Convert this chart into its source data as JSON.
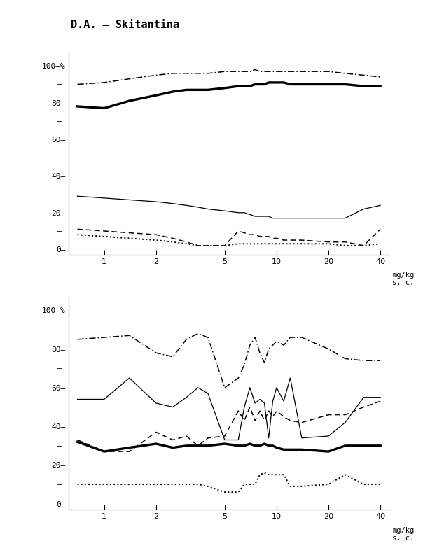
{
  "title": "D.A. – Skitantina",
  "x_label_top": "mg/kg\ns. c.",
  "x_label_bot": "mg/kg\ns. c.",
  "x_vals": [
    0.7,
    1.0,
    1.4,
    2.0,
    2.5,
    3.0,
    3.5,
    4.0,
    5.0,
    6.0,
    6.5,
    7.0,
    7.5,
    8.0,
    8.5,
    9.0,
    9.5,
    10.0,
    11.0,
    12.0,
    14.0,
    20.0,
    25.0,
    32.0,
    40.0
  ],
  "top": {
    "dash_dot": [
      90,
      91,
      93,
      95,
      96,
      96,
      96,
      96,
      97,
      97,
      97,
      97,
      98,
      97,
      97,
      97,
      97,
      97,
      97,
      97,
      97,
      97,
      96,
      95,
      94
    ],
    "solid_bold": [
      78,
      77,
      81,
      84,
      86,
      87,
      87,
      87,
      88,
      89,
      89,
      89,
      90,
      90,
      90,
      91,
      91,
      91,
      91,
      90,
      90,
      90,
      90,
      89,
      89
    ],
    "solid_thin": [
      29,
      28,
      27,
      26,
      25,
      24,
      23,
      22,
      21,
      20,
      20,
      19,
      18,
      18,
      18,
      18,
      17,
      17,
      17,
      17,
      17,
      17,
      17,
      22,
      24
    ],
    "dashed": [
      11,
      10,
      9,
      8,
      6,
      4,
      2,
      2,
      2,
      10,
      9,
      8,
      8,
      7,
      7,
      7,
      6,
      6,
      5,
      5,
      5,
      4,
      4,
      2,
      11
    ],
    "dotted": [
      8,
      7,
      6,
      5,
      4,
      3,
      2,
      2,
      2,
      3,
      3,
      3,
      3,
      3,
      3,
      3,
      3,
      3,
      3,
      3,
      3,
      3,
      2,
      2,
      3
    ]
  },
  "bottom": {
    "dash_dot": [
      85,
      86,
      87,
      78,
      76,
      85,
      88,
      86,
      60,
      65,
      72,
      82,
      86,
      78,
      73,
      80,
      82,
      84,
      82,
      86,
      86,
      80,
      75,
      74,
      74
    ],
    "solid_thin": [
      54,
      54,
      65,
      52,
      50,
      55,
      60,
      57,
      33,
      33,
      50,
      60,
      52,
      54,
      52,
      34,
      53,
      60,
      53,
      65,
      34,
      35,
      42,
      55,
      55
    ],
    "dashed": [
      33,
      27,
      27,
      37,
      33,
      35,
      30,
      34,
      35,
      48,
      43,
      50,
      43,
      48,
      43,
      48,
      45,
      48,
      45,
      43,
      42,
      46,
      46,
      50,
      53
    ],
    "solid_bold": [
      32,
      27,
      29,
      31,
      29,
      30,
      30,
      30,
      31,
      30,
      30,
      31,
      30,
      30,
      31,
      30,
      30,
      29,
      28,
      28,
      28,
      27,
      30,
      30,
      30
    ],
    "dotted": [
      10,
      10,
      10,
      10,
      10,
      10,
      10,
      9,
      6,
      6,
      10,
      10,
      10,
      15,
      16,
      15,
      15,
      15,
      15,
      9,
      9,
      10,
      15,
      10,
      10
    ]
  }
}
